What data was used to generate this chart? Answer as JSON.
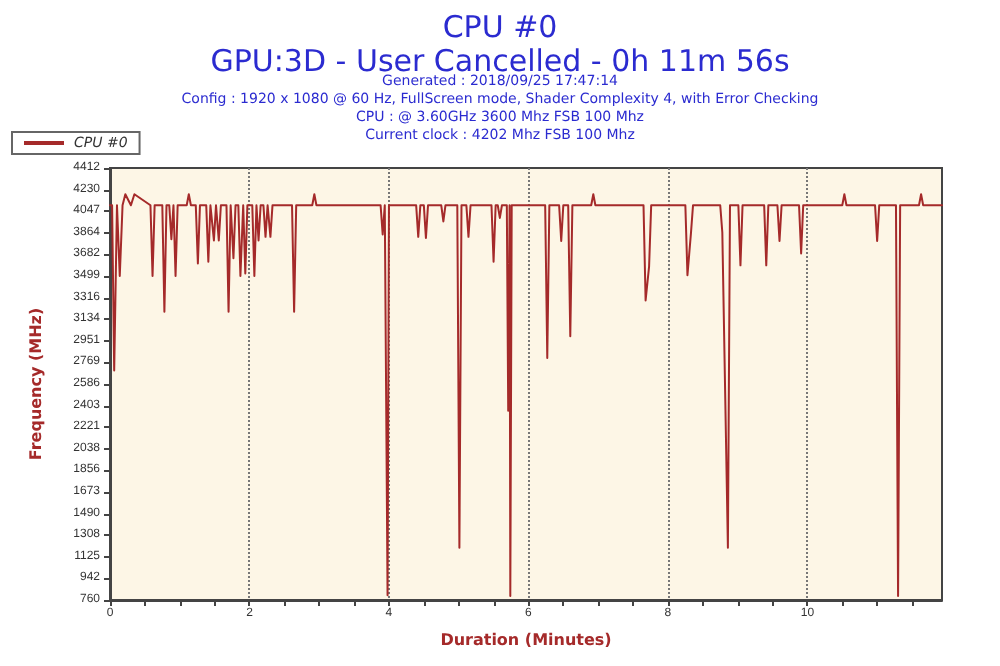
{
  "chart_data": {
    "type": "line",
    "title": "CPU #0",
    "subtitle": "GPU:3D - User Cancelled - 0h 11m 56s",
    "annotations": [
      "Generated : 2018/09/25 17:47:14",
      "Config : 1920 x 1080 @ 60 Hz, FullScreen mode, Shader Complexity 4, with Error Checking",
      "CPU : @ 3.60GHz 3600 Mhz FSB 100 Mhz",
      "Current clock : 4202 Mhz FSB 100 Mhz"
    ],
    "xlabel": "Duration (Minutes)",
    "ylabel": "Frequency (MHz)",
    "series": [
      {
        "name": "CPU #0",
        "color": "#a52a2a",
        "x": [
          0,
          0.03,
          0.06,
          0.1,
          0.14,
          0.18,
          0.22,
          0.3,
          0.35,
          0.58,
          0.61,
          0.64,
          0.75,
          0.78,
          0.81,
          0.85,
          0.88,
          0.91,
          0.94,
          0.97,
          1.1,
          1.13,
          1.16,
          1.23,
          1.26,
          1.29,
          1.38,
          1.41,
          1.44,
          1.46,
          1.49,
          1.52,
          1.56,
          1.59,
          1.67,
          1.7,
          1.73,
          1.77,
          1.8,
          1.84,
          1.87,
          1.91,
          1.94,
          1.97,
          2.04,
          2.07,
          2.1,
          2.13,
          2.16,
          2.2,
          2.23,
          2.26,
          2.3,
          2.33,
          2.61,
          2.64,
          2.67,
          2.9,
          2.93,
          2.96,
          3.88,
          3.91,
          3.94,
          3.98,
          4.0,
          4.39,
          4.42,
          4.45,
          4.5,
          4.53,
          4.56,
          4.75,
          4.78,
          4.81,
          4.98,
          5.01,
          5.04,
          5.11,
          5.14,
          5.17,
          5.47,
          5.5,
          5.53,
          5.56,
          5.59,
          5.62,
          5.69,
          5.71,
          5.73,
          5.74,
          5.76,
          6.24,
          6.27,
          6.3,
          6.44,
          6.47,
          6.5,
          6.57,
          6.6,
          6.63,
          6.9,
          6.93,
          6.96,
          7.65,
          7.68,
          7.73,
          7.76,
          8.25,
          8.28,
          8.33,
          8.36,
          8.75,
          8.78,
          8.86,
          8.89,
          9.01,
          9.04,
          9.07,
          9.38,
          9.41,
          9.44,
          9.57,
          9.6,
          9.63,
          9.88,
          9.91,
          9.94,
          10.5,
          10.53,
          10.56,
          10.97,
          11.0,
          11.03,
          11.27,
          11.3,
          11.33,
          11.6,
          11.63,
          11.66,
          11.93
        ],
        "values": [
          4097,
          4097,
          2700,
          4097,
          3499,
          4097,
          4190,
          4097,
          4190,
          4097,
          3499,
          4097,
          4097,
          3197,
          4097,
          4097,
          3810,
          4097,
          3499,
          4097,
          4097,
          4190,
          4097,
          4097,
          3604,
          4097,
          4097,
          3620,
          4097,
          4097,
          3800,
          4097,
          3800,
          4097,
          4097,
          3197,
          4097,
          3650,
          4097,
          4097,
          3500,
          4097,
          3520,
          4097,
          4097,
          3499,
          4097,
          3800,
          4097,
          4097,
          3830,
          4097,
          3830,
          4097,
          4097,
          3197,
          4097,
          4097,
          4190,
          4097,
          4097,
          3850,
          4097,
          800,
          4097,
          4097,
          3830,
          4097,
          4097,
          3820,
          4097,
          4097,
          3960,
          4097,
          4097,
          1202,
          4097,
          4097,
          3830,
          4097,
          4097,
          3620,
          4097,
          4097,
          3990,
          4097,
          4097,
          2359,
          4097,
          794,
          4097,
          4097,
          2806,
          4097,
          4097,
          3795,
          4097,
          4097,
          2990,
          4097,
          4097,
          4190,
          4097,
          4097,
          3292,
          3580,
          4097,
          4097,
          3505,
          3860,
          4097,
          4097,
          3868,
          1202,
          4097,
          4097,
          3589,
          4097,
          4097,
          3589,
          4097,
          4097,
          3795,
          4097,
          4097,
          3689,
          4097,
          4097,
          4190,
          4097,
          4097,
          3795,
          4097,
          4097,
          794,
          4097,
          4097,
          4190,
          4097,
          4097
        ]
      }
    ],
    "xlim": [
      0,
      11.93
    ],
    "xticks": [
      0,
      {
        "value": 0.5,
        "label": null
      },
      {
        "value": 1,
        "label": null
      },
      {
        "value": 1.5,
        "label": null
      },
      2,
      {
        "value": 2.5,
        "label": null
      },
      {
        "value": 3,
        "label": null
      },
      {
        "value": 3.5,
        "label": null
      },
      4,
      {
        "value": 4.5,
        "label": null
      },
      {
        "value": 5,
        "label": null
      },
      {
        "value": 5.5,
        "label": null
      },
      6,
      {
        "value": 6.5,
        "label": null
      },
      {
        "value": 7,
        "label": null
      },
      {
        "value": 7.5,
        "label": null
      },
      8,
      {
        "value": 8.5,
        "label": null
      },
      {
        "value": 9,
        "label": null
      },
      {
        "value": 9.5,
        "label": null
      },
      10,
      {
        "value": 10.5,
        "label": null
      },
      {
        "value": 11,
        "label": null
      },
      {
        "value": 11.5,
        "label": null
      }
    ],
    "ylim": [
      760,
      4412
    ],
    "yticks": [
      760,
      942,
      1125,
      1308,
      1490,
      1673,
      1856,
      2038,
      2221,
      2403,
      2586,
      2769,
      2951,
      3134,
      3316,
      3499,
      3682,
      3864,
      4047,
      4230,
      4412
    ],
    "grid": "x",
    "legend": "top left",
    "marker": "none",
    "line_style": "solid"
  }
}
